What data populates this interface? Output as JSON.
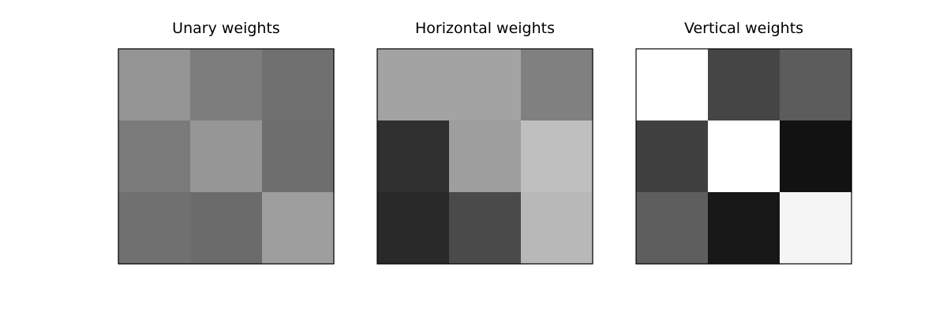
{
  "chart_data": [
    {
      "type": "heatmap",
      "title": "Unary weights",
      "colormap": "gray",
      "rows": 3,
      "cols": 3,
      "values": [
        [
          0.58,
          0.49,
          0.44
        ],
        [
          0.48,
          0.59,
          0.43
        ],
        [
          0.44,
          0.42,
          0.62
        ]
      ]
    },
    {
      "type": "heatmap",
      "title": "Horizontal weights",
      "colormap": "gray",
      "rows": 3,
      "cols": 3,
      "values": [
        [
          0.64,
          0.64,
          0.5
        ],
        [
          0.19,
          0.62,
          0.75
        ],
        [
          0.16,
          0.29,
          0.72
        ]
      ]
    },
    {
      "type": "heatmap",
      "title": "Vertical weights",
      "colormap": "gray",
      "rows": 3,
      "cols": 3,
      "values": [
        [
          1.0,
          0.27,
          0.36
        ],
        [
          0.25,
          1.0,
          0.07
        ],
        [
          0.37,
          0.09,
          0.96
        ]
      ]
    }
  ]
}
